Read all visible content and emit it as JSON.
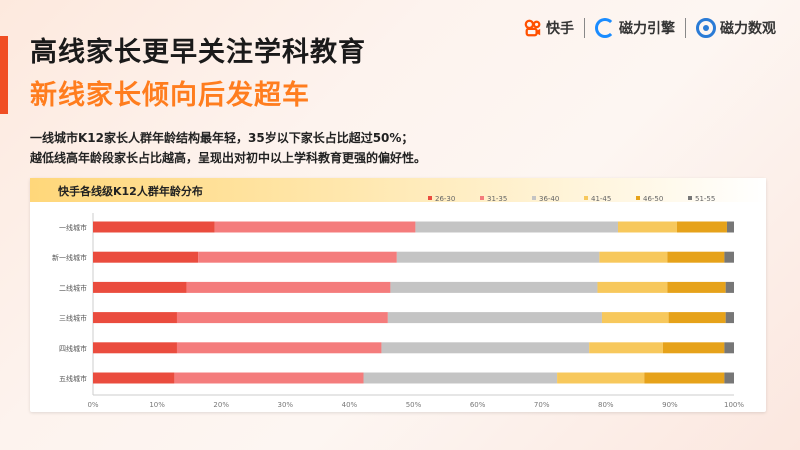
{
  "header": {
    "title_line1": "高线家长更早关注学科教育",
    "title_line2": "新线家长倾向后发超车",
    "description": [
      "一线城市K12家长人群年龄结构最年轻，35岁以下家长占比超过50%；",
      "越低线高年龄段家长占比越高，呈现出对初中以上学科教育更强的偏好性。"
    ]
  },
  "logos": {
    "kuaishou": "快手",
    "cili_yinqing": "磁力引擎",
    "cili_shuguan": "磁力数观"
  },
  "chart_data": {
    "type": "bar",
    "orientation": "horizontal",
    "stacked": true,
    "title": "快手各线级K12人群年龄分布",
    "categories": [
      "一线城市",
      "新一线城市",
      "二线城市",
      "三线城市",
      "四线城市",
      "五线城市"
    ],
    "series": [
      {
        "name": "26-30",
        "color": "#ea4c3e",
        "values": [
          19.0,
          16.4,
          14.6,
          13.1,
          13.1,
          12.7
        ]
      },
      {
        "name": "31-35",
        "color": "#f47c7c",
        "values": [
          31.3,
          31.0,
          31.8,
          32.9,
          31.9,
          29.5
        ]
      },
      {
        "name": "36-40",
        "color": "#c4c4c4",
        "values": [
          31.6,
          31.6,
          32.3,
          33.4,
          32.4,
          30.2
        ]
      },
      {
        "name": "41-45",
        "color": "#f7c85c",
        "values": [
          9.2,
          10.6,
          10.9,
          10.4,
          11.5,
          13.6
        ]
      },
      {
        "name": "46-50",
        "color": "#e6a21a",
        "values": [
          7.8,
          8.9,
          9.1,
          8.9,
          9.6,
          12.5
        ]
      },
      {
        "name": "51-55",
        "color": "#777777",
        "values": [
          1.1,
          1.5,
          1.3,
          1.3,
          1.5,
          1.5
        ]
      }
    ],
    "x_ticks": [
      "0%",
      "10%",
      "20%",
      "30%",
      "40%",
      "50%",
      "60%",
      "70%",
      "80%",
      "90%",
      "100%"
    ],
    "xlim": [
      0,
      100
    ],
    "legend_position": "top-right",
    "grid": true
  }
}
